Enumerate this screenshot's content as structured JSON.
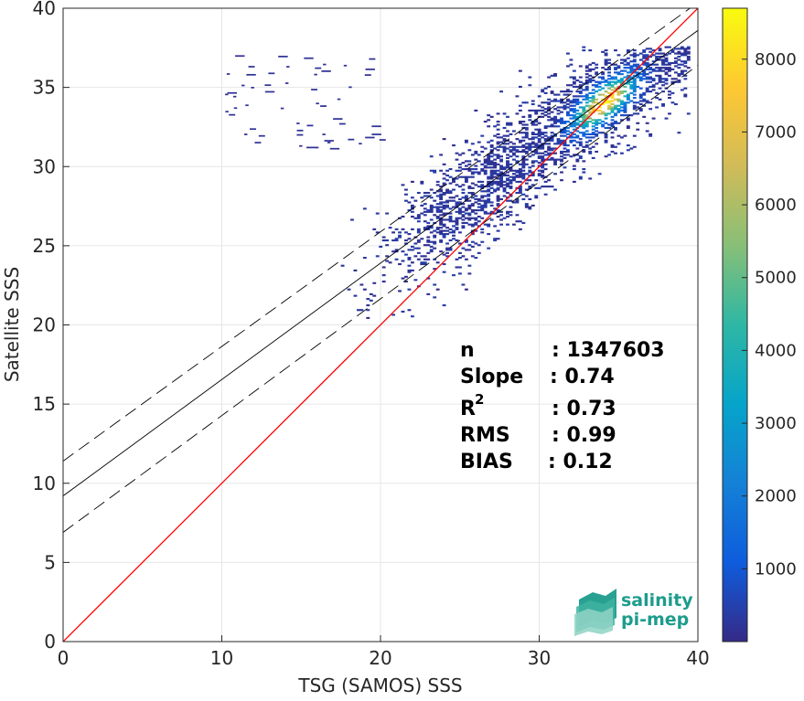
{
  "chart_data": {
    "type": "heatmap",
    "title": "",
    "xlabel": "TSG (SAMOS) SSS",
    "ylabel": "Satellite SSS",
    "xlim": [
      0,
      40
    ],
    "ylim": [
      0,
      40
    ],
    "xticks": [
      0,
      10,
      20,
      30,
      40
    ],
    "yticks": [
      0,
      5,
      10,
      15,
      20,
      25,
      30,
      35,
      40
    ],
    "grid": true,
    "colorbar": {
      "ticks": [
        1000,
        2000,
        3000,
        4000,
        5000,
        6000,
        7000,
        8000
      ],
      "range": [
        0,
        8700
      ],
      "colormap": "parula",
      "colors": [
        "#352a87",
        "#0f5cdd",
        "#1481d6",
        "#06a4ca",
        "#2eb7a4",
        "#87bf77",
        "#d1bb59",
        "#fec832",
        "#f9fb0e"
      ]
    },
    "reference_lines": {
      "one_to_one": {
        "x": [
          0,
          40
        ],
        "y": [
          0,
          40
        ],
        "color": "#ff0000"
      },
      "fit": {
        "x": [
          0,
          40
        ],
        "y": [
          9.2,
          38.6
        ],
        "color": "#000000"
      },
      "upper_bound": {
        "x": [
          0,
          39.5
        ],
        "y": [
          11.4,
          40
        ],
        "color": "#000000",
        "style": "dashed"
      },
      "lower_bound": {
        "x": [
          0,
          40
        ],
        "y": [
          6.9,
          36.4
        ],
        "color": "#000000",
        "style": "dashed"
      }
    },
    "density_core": {
      "x_center": 34,
      "y_center": 34,
      "peak": 8600
    },
    "stats": [
      {
        "label": "n",
        "sup": "",
        "value": ": 1347603"
      },
      {
        "label": "Slope",
        "sup": "",
        "value": ": 0.74"
      },
      {
        "label": "R",
        "sup": "2",
        "value": ": 0.73"
      },
      {
        "label": "RMS",
        "sup": "",
        "value": ": 0.99"
      },
      {
        "label": "BIAS",
        "sup": "",
        "value": ": 0.12"
      }
    ]
  },
  "logo": {
    "line1": "salinity",
    "line2": "pi-mep"
  }
}
